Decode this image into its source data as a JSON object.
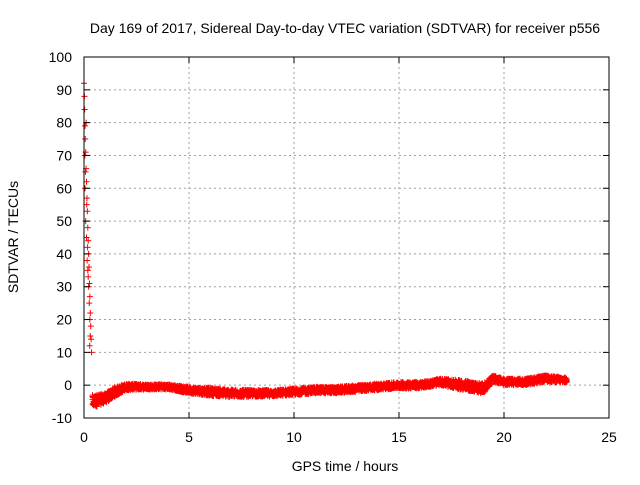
{
  "chart_data": {
    "type": "scatter",
    "title": "Day 169 of 2017, Sidereal Day-to-day VTEC variation (SDTVAR) for receiver p556",
    "xlabel": "GPS time / hours",
    "ylabel": "SDTVAR / TECUs",
    "xlim": [
      0,
      25
    ],
    "ylim": [
      -10,
      100
    ],
    "grid": true,
    "marker": "+",
    "colors": {
      "series": "#ff0000",
      "grid": "#a0a0a0",
      "axis": "#000000"
    },
    "x_ticks": [
      "0",
      "5",
      "10",
      "15",
      "20",
      "25"
    ],
    "y_ticks": [
      "-10",
      "0",
      "10",
      "20",
      "30",
      "40",
      "50",
      "60",
      "70",
      "80",
      "90",
      "100"
    ],
    "series": [
      {
        "name": "SDTVAR",
        "spike_points": [
          [
            0.0,
            92
          ],
          [
            0.02,
            88
          ],
          [
            0.03,
            84
          ],
          [
            0.05,
            79
          ],
          [
            0.06,
            75
          ],
          [
            0.08,
            71
          ],
          [
            0.1,
            66
          ],
          [
            0.12,
            62
          ],
          [
            0.14,
            57
          ],
          [
            0.16,
            53
          ],
          [
            0.18,
            48
          ],
          [
            0.2,
            44
          ],
          [
            0.22,
            40
          ],
          [
            0.24,
            36
          ],
          [
            0.26,
            31
          ],
          [
            0.28,
            27
          ],
          [
            0.3,
            22
          ],
          [
            0.32,
            18
          ],
          [
            0.34,
            14
          ],
          [
            0.36,
            10
          ],
          [
            0.05,
            60
          ],
          [
            0.08,
            50
          ],
          [
            0.12,
            45
          ],
          [
            0.15,
            38
          ],
          [
            0.18,
            35
          ],
          [
            0.22,
            30
          ],
          [
            0.25,
            25
          ],
          [
            0.28,
            20
          ],
          [
            0.3,
            15
          ],
          [
            0.1,
            80
          ],
          [
            0.04,
            70
          ],
          [
            0.07,
            65
          ],
          [
            0.13,
            55
          ],
          [
            0.17,
            42
          ],
          [
            0.2,
            33
          ],
          [
            0.27,
            12
          ]
        ],
        "band_profile": [
          {
            "x": 0.4,
            "y": -5.0,
            "spread": 2.0
          },
          {
            "x": 1.0,
            "y": -4.0,
            "spread": 1.5
          },
          {
            "x": 1.5,
            "y": -2.0,
            "spread": 1.5
          },
          {
            "x": 2.0,
            "y": -0.5,
            "spread": 1.0
          },
          {
            "x": 3.0,
            "y": -0.5,
            "spread": 0.8
          },
          {
            "x": 4.0,
            "y": -0.5,
            "spread": 0.8
          },
          {
            "x": 5.0,
            "y": -1.5,
            "spread": 1.0
          },
          {
            "x": 6.0,
            "y": -2.0,
            "spread": 1.2
          },
          {
            "x": 7.0,
            "y": -2.5,
            "spread": 1.2
          },
          {
            "x": 8.0,
            "y": -2.5,
            "spread": 1.0
          },
          {
            "x": 9.0,
            "y": -2.5,
            "spread": 1.0
          },
          {
            "x": 10.0,
            "y": -2.0,
            "spread": 1.0
          },
          {
            "x": 11.0,
            "y": -1.5,
            "spread": 1.0
          },
          {
            "x": 12.0,
            "y": -1.5,
            "spread": 1.0
          },
          {
            "x": 13.0,
            "y": -1.0,
            "spread": 1.0
          },
          {
            "x": 14.0,
            "y": -0.5,
            "spread": 1.0
          },
          {
            "x": 15.0,
            "y": 0.0,
            "spread": 1.0
          },
          {
            "x": 16.0,
            "y": 0.0,
            "spread": 1.0
          },
          {
            "x": 17.0,
            "y": 1.0,
            "spread": 1.0
          },
          {
            "x": 18.0,
            "y": 0.0,
            "spread": 1.5
          },
          {
            "x": 19.0,
            "y": -1.0,
            "spread": 1.5
          },
          {
            "x": 19.5,
            "y": 2.0,
            "spread": 1.0
          },
          {
            "x": 20.0,
            "y": 1.0,
            "spread": 1.0
          },
          {
            "x": 21.0,
            "y": 1.0,
            "spread": 1.0
          },
          {
            "x": 22.0,
            "y": 2.0,
            "spread": 1.0
          },
          {
            "x": 23.0,
            "y": 1.5,
            "spread": 0.8
          }
        ]
      }
    ]
  }
}
